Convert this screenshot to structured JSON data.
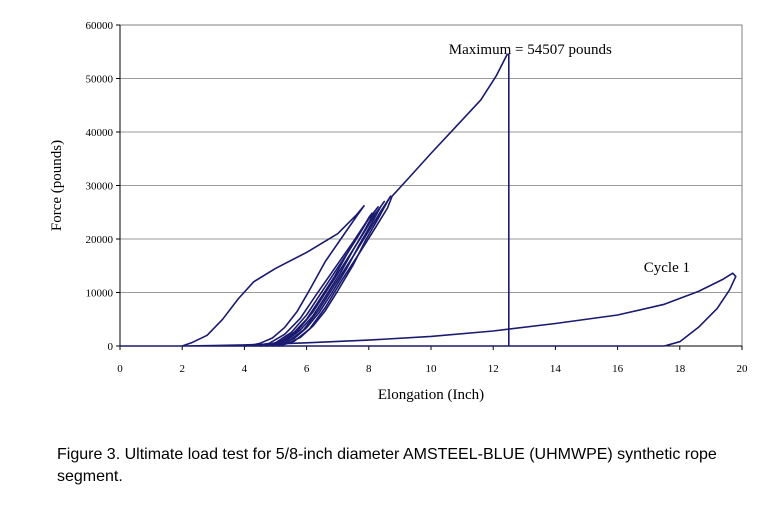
{
  "caption": "Figure 3. Ultimate load test for 5/8-inch diameter AMSTEEL-BLUE (UHMWPE) synthetic rope segment.",
  "colors": {
    "line": "#1a1a6e",
    "grid": "#9a9a9a",
    "plot_border": "#808080"
  },
  "chart_data": {
    "type": "line",
    "title": "",
    "xlabel": "Elongation (Inch)",
    "ylabel": "Force (pounds)",
    "xlim": [
      0,
      20
    ],
    "ylim": [
      0,
      60000
    ],
    "xticks": [
      0,
      2,
      4,
      6,
      8,
      10,
      12,
      14,
      16,
      18,
      20
    ],
    "yticks": [
      0,
      10000,
      20000,
      30000,
      40000,
      50000,
      60000
    ],
    "grid": "horizontal",
    "annotations": [
      {
        "text": "Maximum = 54507 pounds",
        "x": 12.5,
        "y": 54507
      },
      {
        "text": "Cycle 1",
        "x": 19.8,
        "y": 13500
      }
    ],
    "series": [
      {
        "values": [
          [
            0,
            0
          ],
          [
            16,
            0
          ],
          [
            17.5,
            0
          ],
          [
            18.0,
            800
          ],
          [
            18.6,
            3500
          ],
          [
            19.2,
            7000
          ],
          [
            19.6,
            10500
          ],
          [
            19.8,
            13000
          ],
          [
            19.7,
            13600
          ],
          [
            19.4,
            12500
          ],
          [
            18.6,
            10200
          ],
          [
            17.5,
            7800
          ],
          [
            16,
            5800
          ],
          [
            14,
            4200
          ],
          [
            12,
            2800
          ],
          [
            10,
            1800
          ],
          [
            8,
            1100
          ],
          [
            6,
            600
          ],
          [
            5,
            400
          ],
          [
            4,
            200
          ],
          [
            3,
            80
          ],
          [
            2,
            0
          ],
          [
            0,
            0
          ]
        ]
      },
      {
        "values": [
          [
            2,
            0
          ],
          [
            2.3,
            600
          ],
          [
            2.8,
            2000
          ],
          [
            3.3,
            5000
          ],
          [
            3.8,
            8800
          ],
          [
            4.3,
            12000
          ],
          [
            5.0,
            14500
          ],
          [
            6.0,
            17500
          ],
          [
            7.0,
            21000
          ],
          [
            7.6,
            24500
          ],
          [
            7.85,
            26200
          ],
          [
            7.6,
            24200
          ],
          [
            7.1,
            20000
          ],
          [
            6.6,
            15800
          ],
          [
            6.1,
            10500
          ],
          [
            5.7,
            6500
          ],
          [
            5.3,
            3500
          ],
          [
            4.9,
            1500
          ],
          [
            4.5,
            500
          ],
          [
            4.2,
            100
          ],
          [
            4.0,
            0
          ]
        ]
      },
      {
        "values": [
          [
            4.3,
            0
          ],
          [
            4.8,
            500
          ],
          [
            5.3,
            2200
          ],
          [
            5.8,
            5200
          ],
          [
            6.3,
            9500
          ],
          [
            6.9,
            14500
          ],
          [
            7.5,
            19500
          ],
          [
            7.9,
            23000
          ],
          [
            8.1,
            24800
          ],
          [
            8.0,
            24000
          ],
          [
            7.7,
            21000
          ],
          [
            7.3,
            17200
          ],
          [
            6.9,
            13000
          ],
          [
            6.4,
            8500
          ],
          [
            6.0,
            5000
          ],
          [
            5.6,
            2600
          ],
          [
            5.2,
            1000
          ],
          [
            4.8,
            200
          ],
          [
            4.5,
            0
          ]
        ]
      },
      {
        "values": [
          [
            4.5,
            0
          ],
          [
            5.0,
            600
          ],
          [
            5.5,
            2500
          ],
          [
            6.0,
            5800
          ],
          [
            6.5,
            10200
          ],
          [
            7.1,
            15500
          ],
          [
            7.6,
            20000
          ],
          [
            8.0,
            23800
          ],
          [
            8.3,
            26000
          ],
          [
            8.2,
            25200
          ],
          [
            7.9,
            22000
          ],
          [
            7.5,
            18000
          ],
          [
            7.1,
            13800
          ],
          [
            6.6,
            9200
          ],
          [
            6.2,
            5600
          ],
          [
            5.8,
            3000
          ],
          [
            5.4,
            1200
          ],
          [
            5.0,
            300
          ],
          [
            4.7,
            0
          ]
        ]
      },
      {
        "values": [
          [
            4.7,
            0
          ],
          [
            5.2,
            700
          ],
          [
            5.7,
            2800
          ],
          [
            6.2,
            6300
          ],
          [
            6.7,
            10800
          ],
          [
            7.3,
            16200
          ],
          [
            7.8,
            20800
          ],
          [
            8.2,
            24600
          ],
          [
            8.5,
            27000
          ],
          [
            8.4,
            26200
          ],
          [
            8.1,
            23000
          ],
          [
            7.7,
            19000
          ],
          [
            7.3,
            14600
          ],
          [
            6.8,
            9800
          ],
          [
            6.4,
            6200
          ],
          [
            6.0,
            3400
          ],
          [
            5.6,
            1400
          ],
          [
            5.2,
            400
          ],
          [
            4.9,
            0
          ]
        ]
      },
      {
        "values": [
          [
            4.9,
            0
          ],
          [
            5.4,
            800
          ],
          [
            5.9,
            3000
          ],
          [
            6.4,
            6800
          ],
          [
            6.9,
            11400
          ],
          [
            7.5,
            16800
          ],
          [
            8.0,
            21500
          ],
          [
            8.4,
            25300
          ],
          [
            8.7,
            28000
          ],
          [
            8.6,
            27000
          ],
          [
            8.3,
            23800
          ],
          [
            7.9,
            19800
          ],
          [
            7.5,
            15200
          ],
          [
            7.0,
            10300
          ],
          [
            6.6,
            6600
          ],
          [
            6.2,
            3700
          ],
          [
            5.8,
            1600
          ],
          [
            5.4,
            500
          ],
          [
            5.1,
            0
          ]
        ]
      },
      {
        "values": [
          [
            5.1,
            0
          ],
          [
            5.6,
            900
          ],
          [
            6.1,
            3200
          ],
          [
            6.6,
            7200
          ],
          [
            7.1,
            12000
          ],
          [
            7.7,
            17400
          ],
          [
            8.2,
            22000
          ],
          [
            8.6,
            25800
          ],
          [
            8.75,
            28000
          ],
          [
            9.3,
            31500
          ],
          [
            10.0,
            36000
          ],
          [
            10.8,
            41000
          ],
          [
            11.6,
            46000
          ],
          [
            12.1,
            50500
          ],
          [
            12.45,
            54507
          ],
          [
            12.5,
            54507
          ],
          [
            12.5,
            0
          ]
        ]
      }
    ]
  }
}
